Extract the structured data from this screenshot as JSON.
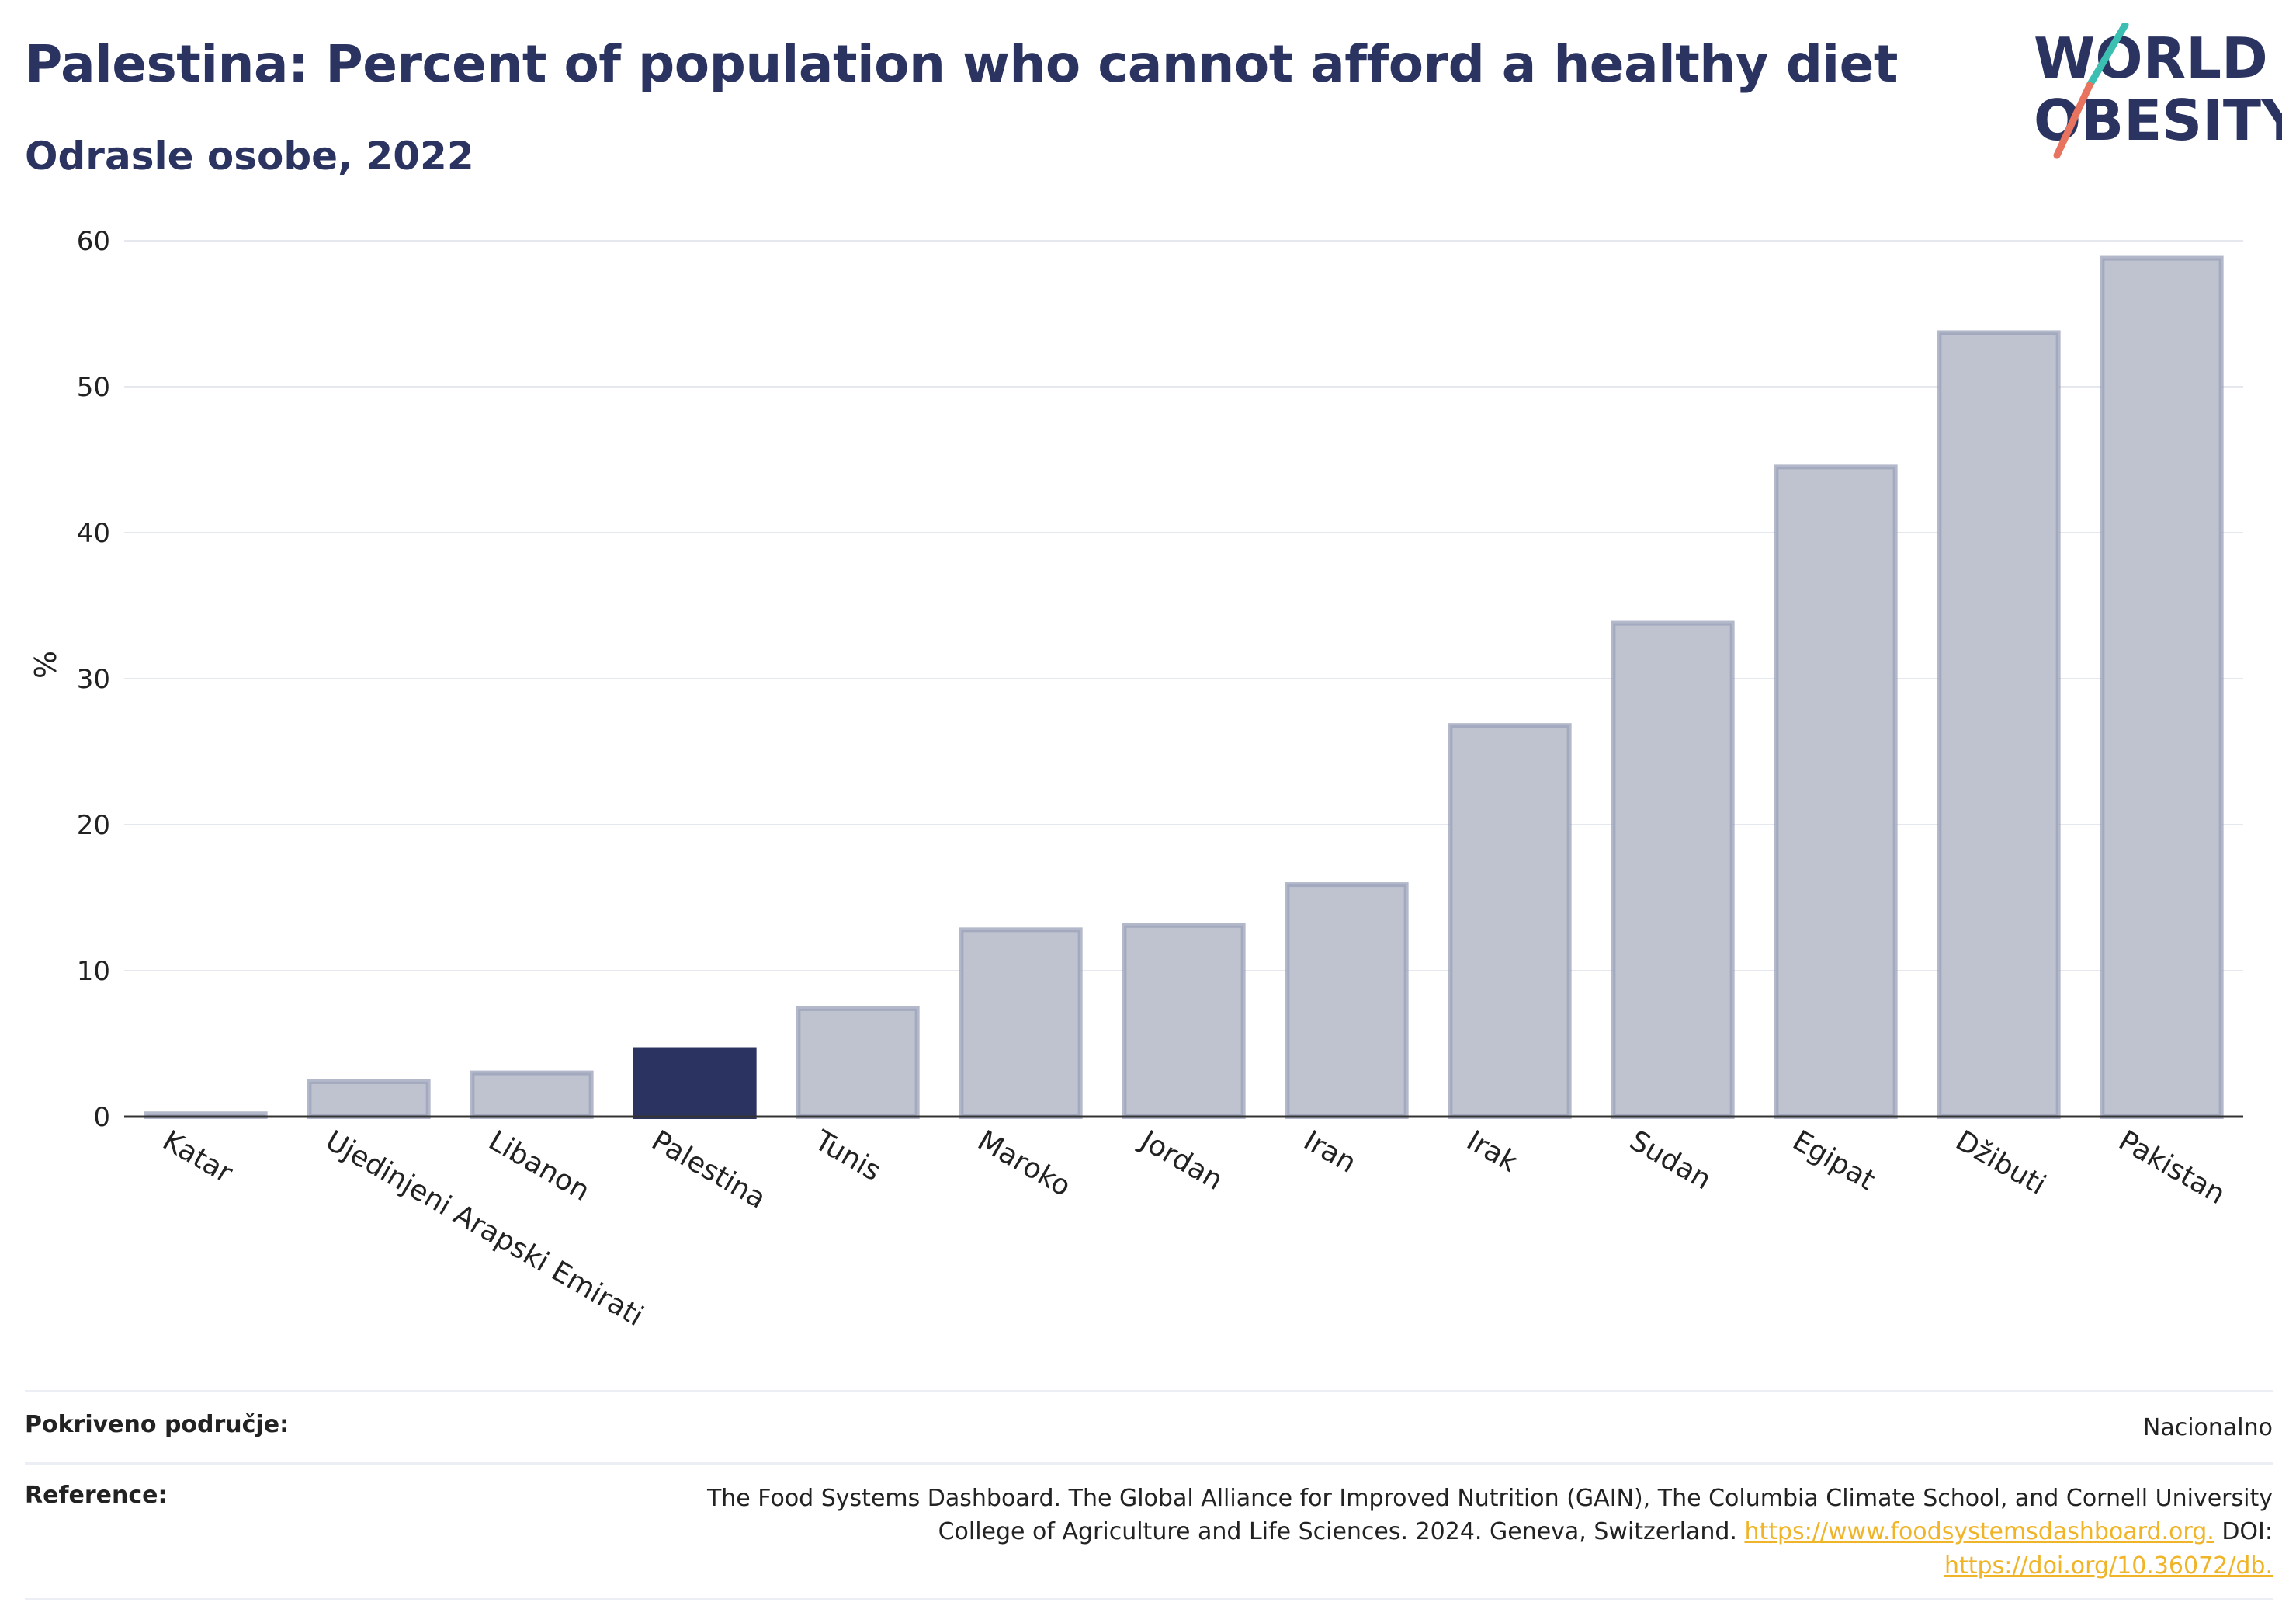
{
  "header": {
    "title": "Palestina: Percent of population who cannot afford a healthy diet",
    "subtitle": "Odrasle osobe, 2022"
  },
  "logo": {
    "line1": "WORLD",
    "line2": "OBESITY"
  },
  "colors": {
    "title": "#2b3461",
    "bar": "#bfc3cf",
    "bar_stroke": "#9aa0b8",
    "highlight": "#2b3461",
    "accent_teal": "#3bbfb3",
    "accent_coral": "#e8735e",
    "link": "#f0b429"
  },
  "chart_data": {
    "type": "bar",
    "ylabel": "%",
    "ylim": [
      0,
      60
    ],
    "yticks": [
      0,
      10,
      20,
      30,
      40,
      50,
      60
    ],
    "grid": true,
    "highlight": "Palestina",
    "categories": [
      "Katar",
      "Ujedinjeni Arapski Emirati",
      "Libanon",
      "Palestina",
      "Tunis",
      "Maroko",
      "Jordan",
      "Iran",
      "Irak",
      "Sudan",
      "Egipat",
      "Džibuti",
      "Pakistan"
    ],
    "values": [
      0.2,
      2.4,
      3.0,
      4.6,
      7.4,
      12.8,
      13.1,
      15.9,
      26.8,
      33.8,
      44.5,
      53.7,
      58.8
    ]
  },
  "footer": {
    "coverage_label": "Pokriveno područje:",
    "coverage_value": "Nacionalno",
    "reference_label": "Reference:",
    "reference_line1": "The Food Systems Dashboard. The Global Alliance for Improved Nutrition (GAIN), The Columbia Climate School, and Cornell University",
    "reference_line2_text": "College of Agriculture and Life Sciences. 2024. Geneva, Switzerland.",
    "reference_link1": "https://www.foodsystemsdashboard.org.",
    "reference_doi_label": "DOI:",
    "reference_link2": "https://doi.org/10.36072/db."
  }
}
